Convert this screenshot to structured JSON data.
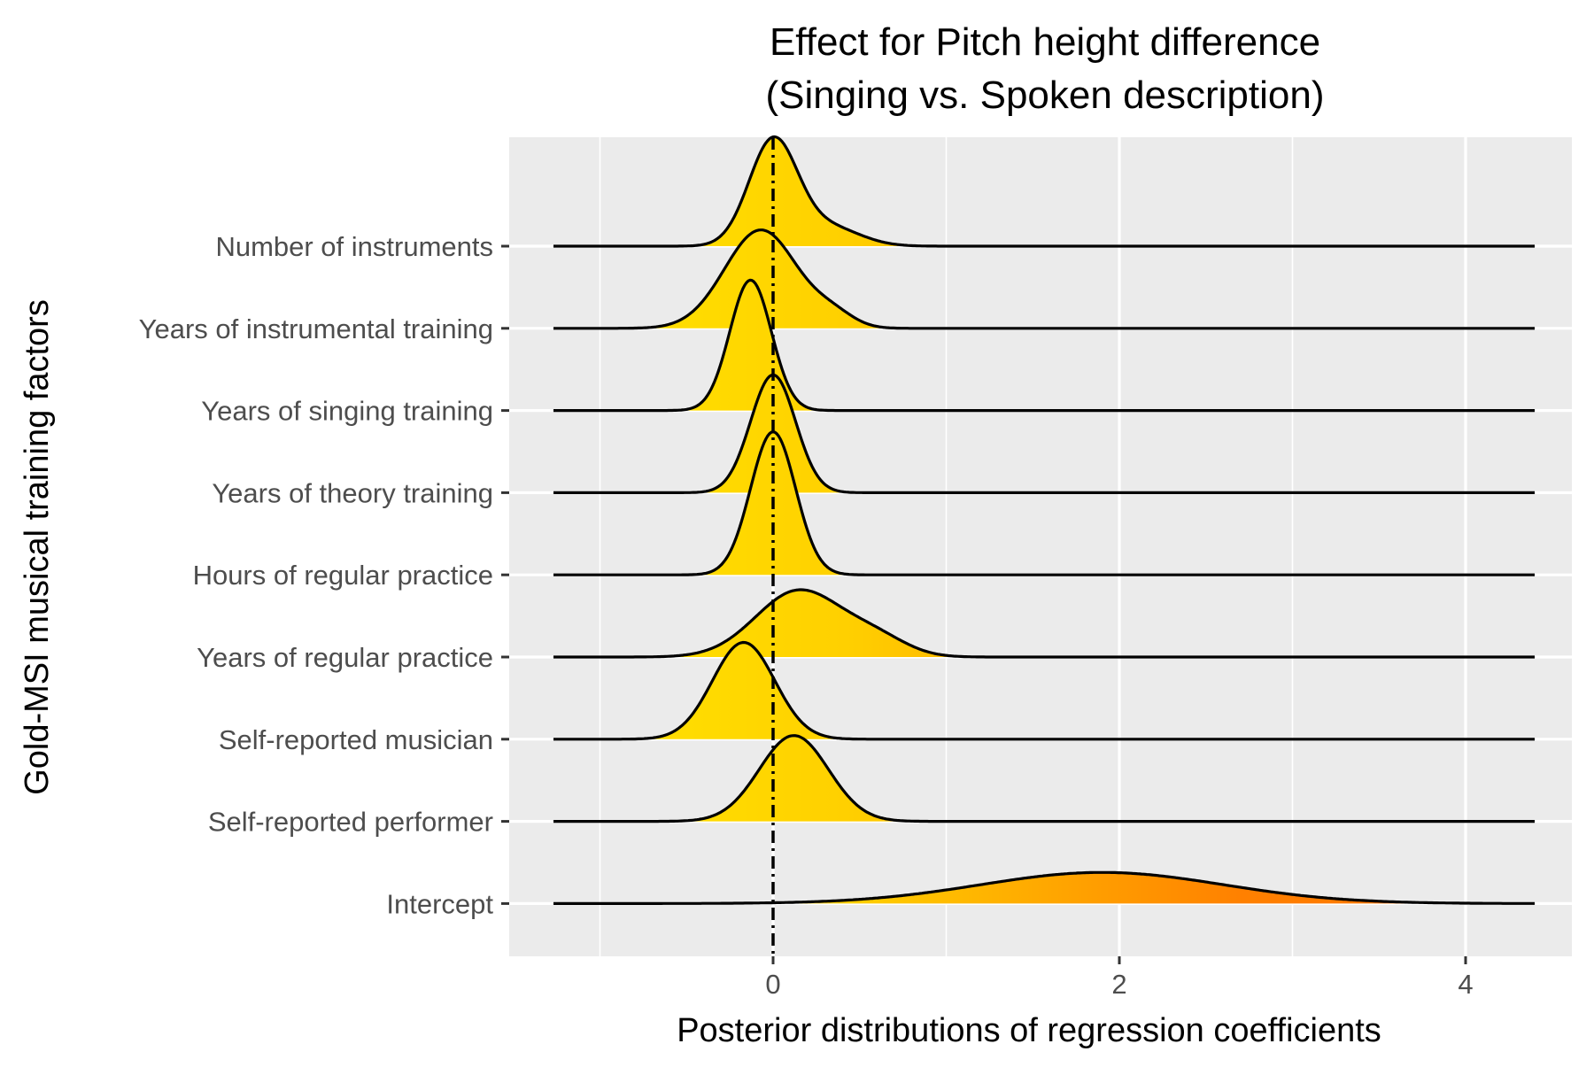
{
  "chart_data": {
    "type": "ridgeline",
    "title_line1": "Effect for Pitch height difference",
    "title_line2": "(Singing vs. Spoken description)",
    "xlabel": "Posterior distributions of regression coefficients",
    "ylabel": "Gold-MSI musical training factors",
    "x_ticks": [
      0,
      2,
      4
    ],
    "xlim": [
      -1.5,
      4.6
    ],
    "grid": true,
    "reference_line_x": 0,
    "colors": {
      "panel": "#ebebeb",
      "grid": "#ffffff",
      "low": "#ffe600",
      "mid": "#ffc000",
      "high": "#ff8000",
      "line": "#000000"
    },
    "series": [
      {
        "label": "Number of instruments",
        "mean": 0.0,
        "sd": 0.15,
        "peak": 1.3,
        "components": [
          [
            1.0,
            0.0,
            0.14
          ],
          [
            0.18,
            0.32,
            0.18
          ]
        ]
      },
      {
        "label": "Years of instrumental training",
        "mean": 0.0,
        "sd": 0.2,
        "peak": 1.17,
        "components": [
          [
            1.0,
            -0.07,
            0.21
          ],
          [
            0.12,
            0.35,
            0.12
          ]
        ]
      },
      {
        "label": "Years of singing training",
        "mean": -0.13,
        "sd": 0.12,
        "peak": 1.55,
        "components": [
          [
            1.0,
            -0.13,
            0.12
          ]
        ]
      },
      {
        "label": "Years of theory training",
        "mean": 0.0,
        "sd": 0.13,
        "peak": 1.4,
        "components": [
          [
            1.0,
            0.0,
            0.13
          ]
        ]
      },
      {
        "label": "Hours of regular practice",
        "mean": 0.0,
        "sd": 0.13,
        "peak": 1.7,
        "components": [
          [
            1.0,
            0.0,
            0.13
          ]
        ]
      },
      {
        "label": "Years of regular practice",
        "mean": 0.15,
        "sd": 0.3,
        "peak": 0.8,
        "components": [
          [
            1.0,
            0.15,
            0.25
          ],
          [
            0.25,
            0.6,
            0.18
          ]
        ]
      },
      {
        "label": "Self-reported musician",
        "mean": -0.17,
        "sd": 0.18,
        "peak": 1.15,
        "components": [
          [
            1.0,
            -0.17,
            0.18
          ]
        ]
      },
      {
        "label": "Self-reported performer",
        "mean": 0.12,
        "sd": 0.2,
        "peak": 1.02,
        "components": [
          [
            1.0,
            0.12,
            0.2
          ]
        ]
      },
      {
        "label": "Intercept",
        "mean": 1.9,
        "sd": 0.7,
        "peak": 0.37,
        "components": [
          [
            1.0,
            1.9,
            0.7
          ]
        ]
      }
    ]
  }
}
